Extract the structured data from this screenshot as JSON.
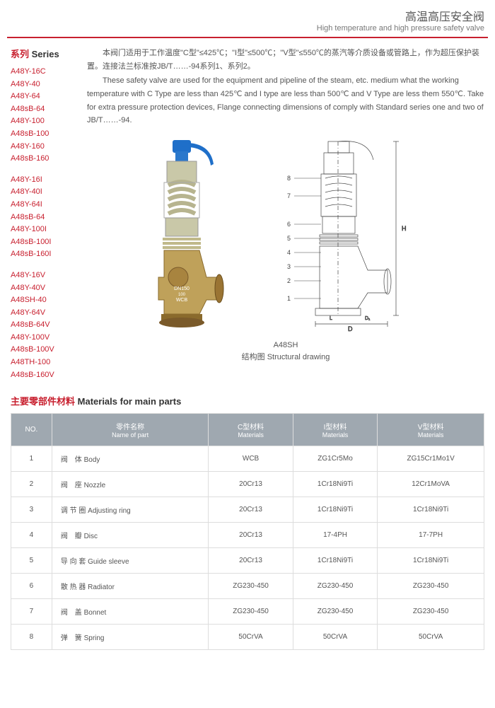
{
  "header": {
    "cn": "高温高压安全阀",
    "en": "High temperature and high pressure safety valve"
  },
  "series": {
    "title_cn": "系列",
    "title_en": "Series",
    "groups": [
      [
        "A48Y-16C",
        "A48Y-40",
        "A48Y-64",
        "A48sB-64",
        "A48Y-100",
        "A48sB-100",
        "A48Y-160",
        "A48sB-160"
      ],
      [
        "A48Y-16I",
        "A48Y-40I",
        "A48Y-64I",
        "A48sB-64",
        "A48Y-100I",
        "A48sB-100I",
        "A48sB-160I"
      ],
      [
        "A48Y-16V",
        "A48Y-40V",
        "A48SH-40",
        "A48Y-64V",
        "A48sB-64V",
        "A48Y-100V",
        "A48sB-100V",
        "A48TH-100",
        "A48sB-160V"
      ]
    ]
  },
  "description": {
    "cn": "本阀门适用于工作温度\"C型\"≤425℃；\"I型\"≤500℃；\"V型\"≤550℃的蒸汽等介质设备或管路上，作为超压保护装置。连接法兰标准按JB/T……-94系列1、系列2。",
    "en": "These safety valve are used for the equipment and pipeline of the steam, etc. medium what the working temperature with C Type are less than 425℃ and I type are less than 500℃ and V Type are less them 550℃. Take for extra pressure protection devices, Flange connecting dimensions of comply with Standard series one and two of JB/T……-94."
  },
  "figure": {
    "model": "A48SH",
    "caption_cn": "结构图",
    "caption_en": "Structural drawing"
  },
  "valve_colors": {
    "cap": "#1f6fc9",
    "upper": "#c9c8a8",
    "lower": "#bfa15a",
    "spring": "#d0cdb0",
    "flange": "#7a5a2a"
  },
  "drawing_labels": [
    "8",
    "7",
    "6",
    "5",
    "4",
    "3",
    "2",
    "1"
  ],
  "materials": {
    "title_cn": "主要零部件材料",
    "title_en": "Materials for main parts",
    "headers": [
      {
        "cn": "NO.",
        "en": ""
      },
      {
        "cn": "零件名称",
        "en": "Name of part"
      },
      {
        "cn": "C型材料",
        "en": "Materials"
      },
      {
        "cn": "I型材料",
        "en": "Materials"
      },
      {
        "cn": "V型材料",
        "en": "Materials"
      }
    ],
    "rows": [
      {
        "no": "1",
        "name_cn": "阀　体",
        "name_en": "Body",
        "c": "WCB",
        "i": "ZG1Cr5Mo",
        "v": "ZG15Cr1Mo1V"
      },
      {
        "no": "2",
        "name_cn": "阀　座",
        "name_en": "Nozzle",
        "c": "20Cr13",
        "i": "1Cr18Ni9Ti",
        "v": "12Cr1MoVA"
      },
      {
        "no": "3",
        "name_cn": "调 节 圈",
        "name_en": "Adjusting ring",
        "c": "20Cr13",
        "i": "1Cr18Ni9Ti",
        "v": "1Cr18Ni9Ti"
      },
      {
        "no": "4",
        "name_cn": "阀　瓣",
        "name_en": "Disc",
        "c": "20Cr13",
        "i": "17-4PH",
        "v": "17-7PH"
      },
      {
        "no": "5",
        "name_cn": "导 向 套",
        "name_en": "Guide sleeve",
        "c": "20Cr13",
        "i": "1Cr18Ni9Ti",
        "v": "1Cr18Ni9Ti"
      },
      {
        "no": "6",
        "name_cn": "散 热 器",
        "name_en": "Radiator",
        "c": "ZG230-450",
        "i": "ZG230-450",
        "v": "ZG230-450"
      },
      {
        "no": "7",
        "name_cn": "阀　盖",
        "name_en": "Bonnet",
        "c": "ZG230-450",
        "i": "ZG230-450",
        "v": "ZG230-450"
      },
      {
        "no": "8",
        "name_cn": "弹　簧",
        "name_en": "Spring",
        "c": "50CrVA",
        "i": "50CrVA",
        "v": "50CrVA"
      }
    ]
  }
}
